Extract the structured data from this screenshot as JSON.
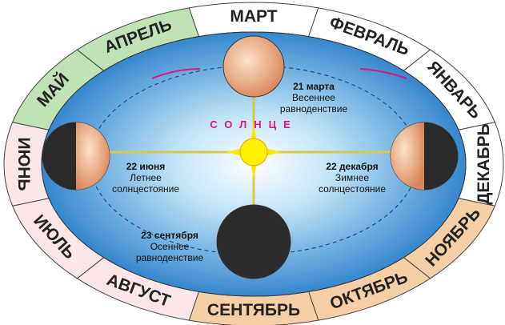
{
  "months": [
    "МАРТ",
    "ФЕВРАЛЬ",
    "ЯНВАРЬ",
    "ДЕКАБРЬ",
    "НОЯБРЬ",
    "ОКТЯБРЬ",
    "СЕНТЯБРЬ",
    "АВГУСТ",
    "ИЮЛЬ",
    "ИЮНЬ",
    "МАЙ",
    "АПРЕЛЬ"
  ],
  "sun": "СОЛНЦЕ",
  "points": [
    {
      "date": "21 марта",
      "lines": [
        "Весеннее",
        "равноденствие"
      ]
    },
    {
      "date": "22 июня",
      "lines": [
        "Летнее",
        "солнцестояние"
      ]
    },
    {
      "date": "22 декабря",
      "lines": [
        "Зимнее",
        "солнцестояние"
      ]
    },
    {
      "date": "23 сентября",
      "lines": [
        "Осеннее",
        "равноденствие"
      ]
    }
  ]
}
